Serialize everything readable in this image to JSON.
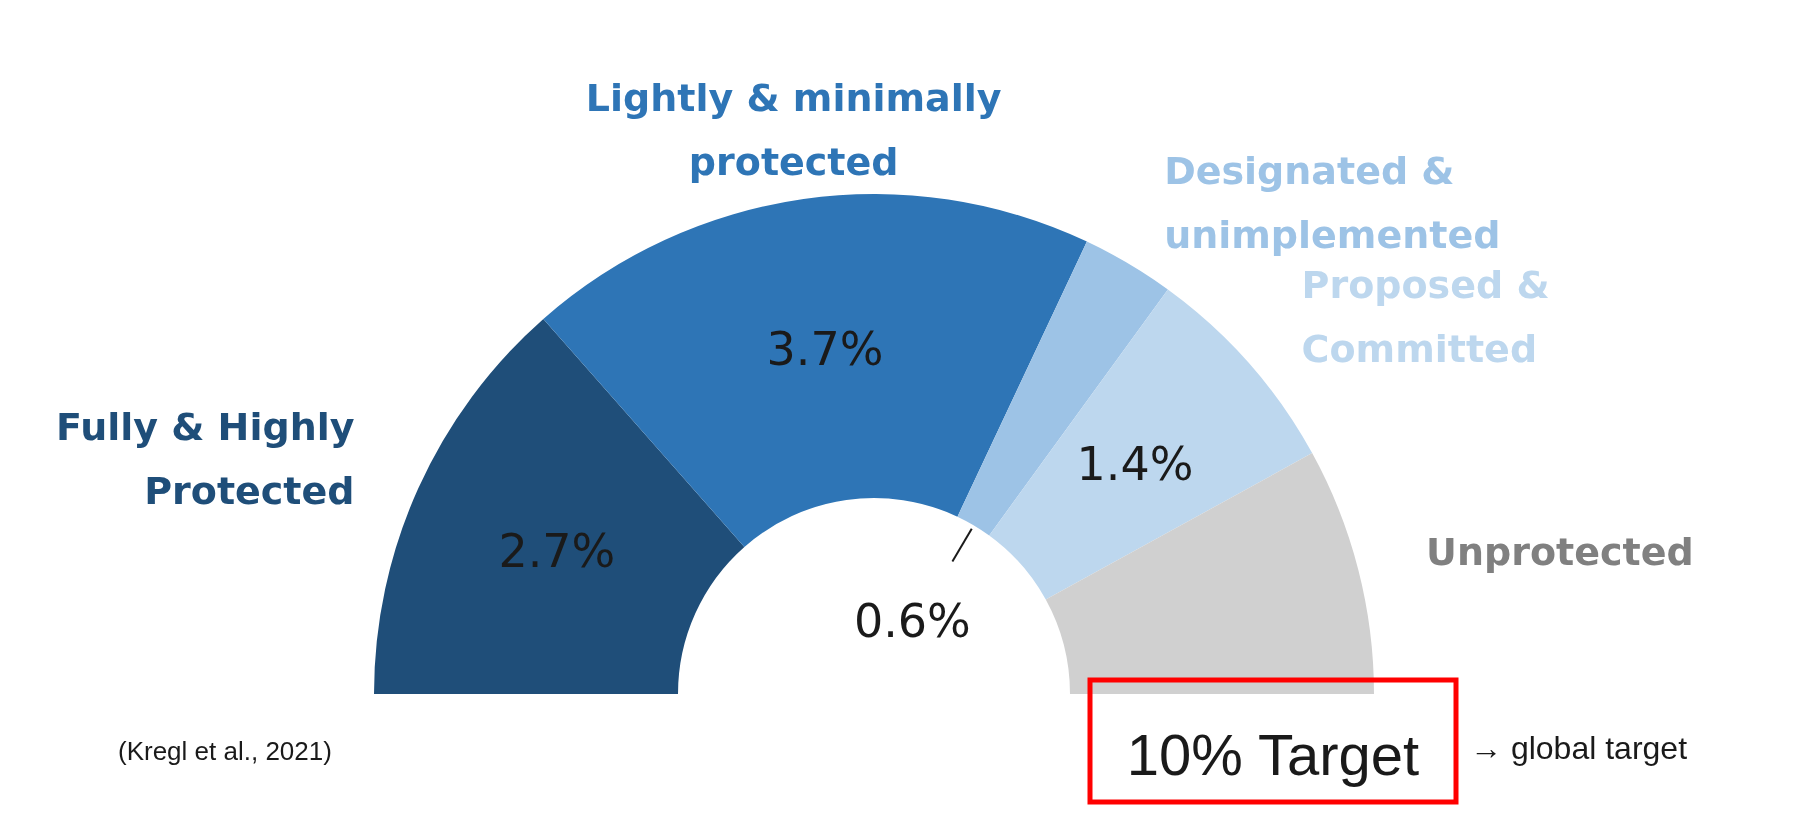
{
  "chart_data": {
    "type": "donut",
    "categories": [
      "Fully & Highly Protected",
      "Lightly & minimally protected",
      "Designated & unimplemented",
      "Proposed & Committed",
      "Unprotected"
    ],
    "values": [
      2.7,
      3.7,
      0.6,
      1.4,
      1.6
    ],
    "colors": [
      "#1f4e79",
      "#2e75b6",
      "#9dc3e6",
      "#bdd7ee",
      "#d0d0d0"
    ],
    "value_labels": [
      "2.7%",
      "3.7%",
      "0.6%",
      "1.4%",
      null
    ],
    "annotations": [
      "(Kregl et al., 2021)",
      "10% Target",
      "→ global target"
    ]
  }
}
